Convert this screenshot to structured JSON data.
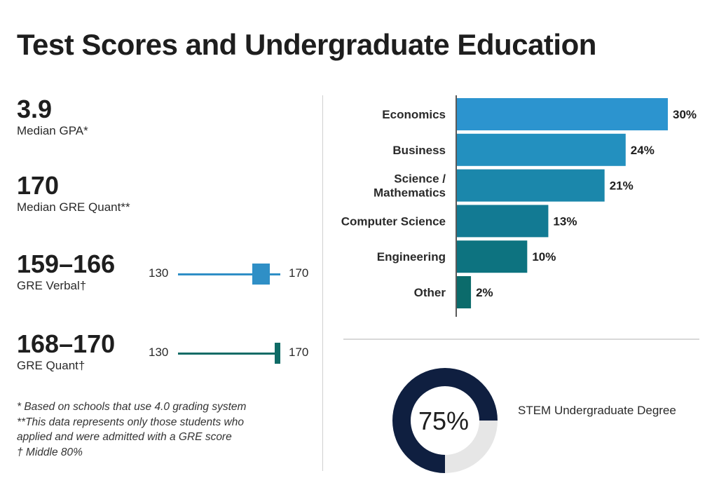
{
  "title": "Test Scores and Undergraduate Education",
  "stats": [
    {
      "value": "3.9",
      "label": "Median GPA*"
    },
    {
      "value": "170",
      "label": "Median GRE Quant**"
    },
    {
      "value": "159–166",
      "label": "GRE Verbal†",
      "range": {
        "min": "130",
        "max": "170",
        "low": 159,
        "high": 166,
        "color": "#2f8fc6"
      }
    },
    {
      "value": "168–170",
      "label": "GRE Quant†",
      "range": {
        "min": "130",
        "max": "170",
        "low": 168,
        "high": 170,
        "color": "#0f6b66"
      }
    }
  ],
  "footnotes": [
    "* Based on schools that use 4.0 grading system",
    "**This data represents only those students who",
    "applied and were admitted with a GRE score",
    "† Middle 80%"
  ],
  "chart_data": [
    {
      "type": "bar",
      "orientation": "horizontal",
      "categories": [
        "Economics",
        "Business",
        "Science / Mathematics",
        "Computer Science",
        "Engineering",
        "Other"
      ],
      "category_lines": [
        [
          "Economics"
        ],
        [
          "Business"
        ],
        [
          "Science /",
          "Mathematics"
        ],
        [
          "Computer Science"
        ],
        [
          "Engineering"
        ],
        [
          "Other"
        ]
      ],
      "values": [
        30,
        24,
        21,
        13,
        10,
        2
      ],
      "value_labels": [
        "30%",
        "24%",
        "21%",
        "13%",
        "10%",
        "2%"
      ],
      "xlim": [
        0,
        30
      ],
      "colors": [
        "#2c94cf",
        "#2390bf",
        "#1b87ab",
        "#127a93",
        "#0d7380",
        "#0b6b6b"
      ],
      "grid": false
    },
    {
      "type": "pie",
      "style": "donut",
      "values": [
        75,
        25
      ],
      "center_label": "75%",
      "caption": "STEM Undergraduate Degree",
      "colors": [
        "#0f1f40",
        "#e6e6e6"
      ]
    }
  ]
}
